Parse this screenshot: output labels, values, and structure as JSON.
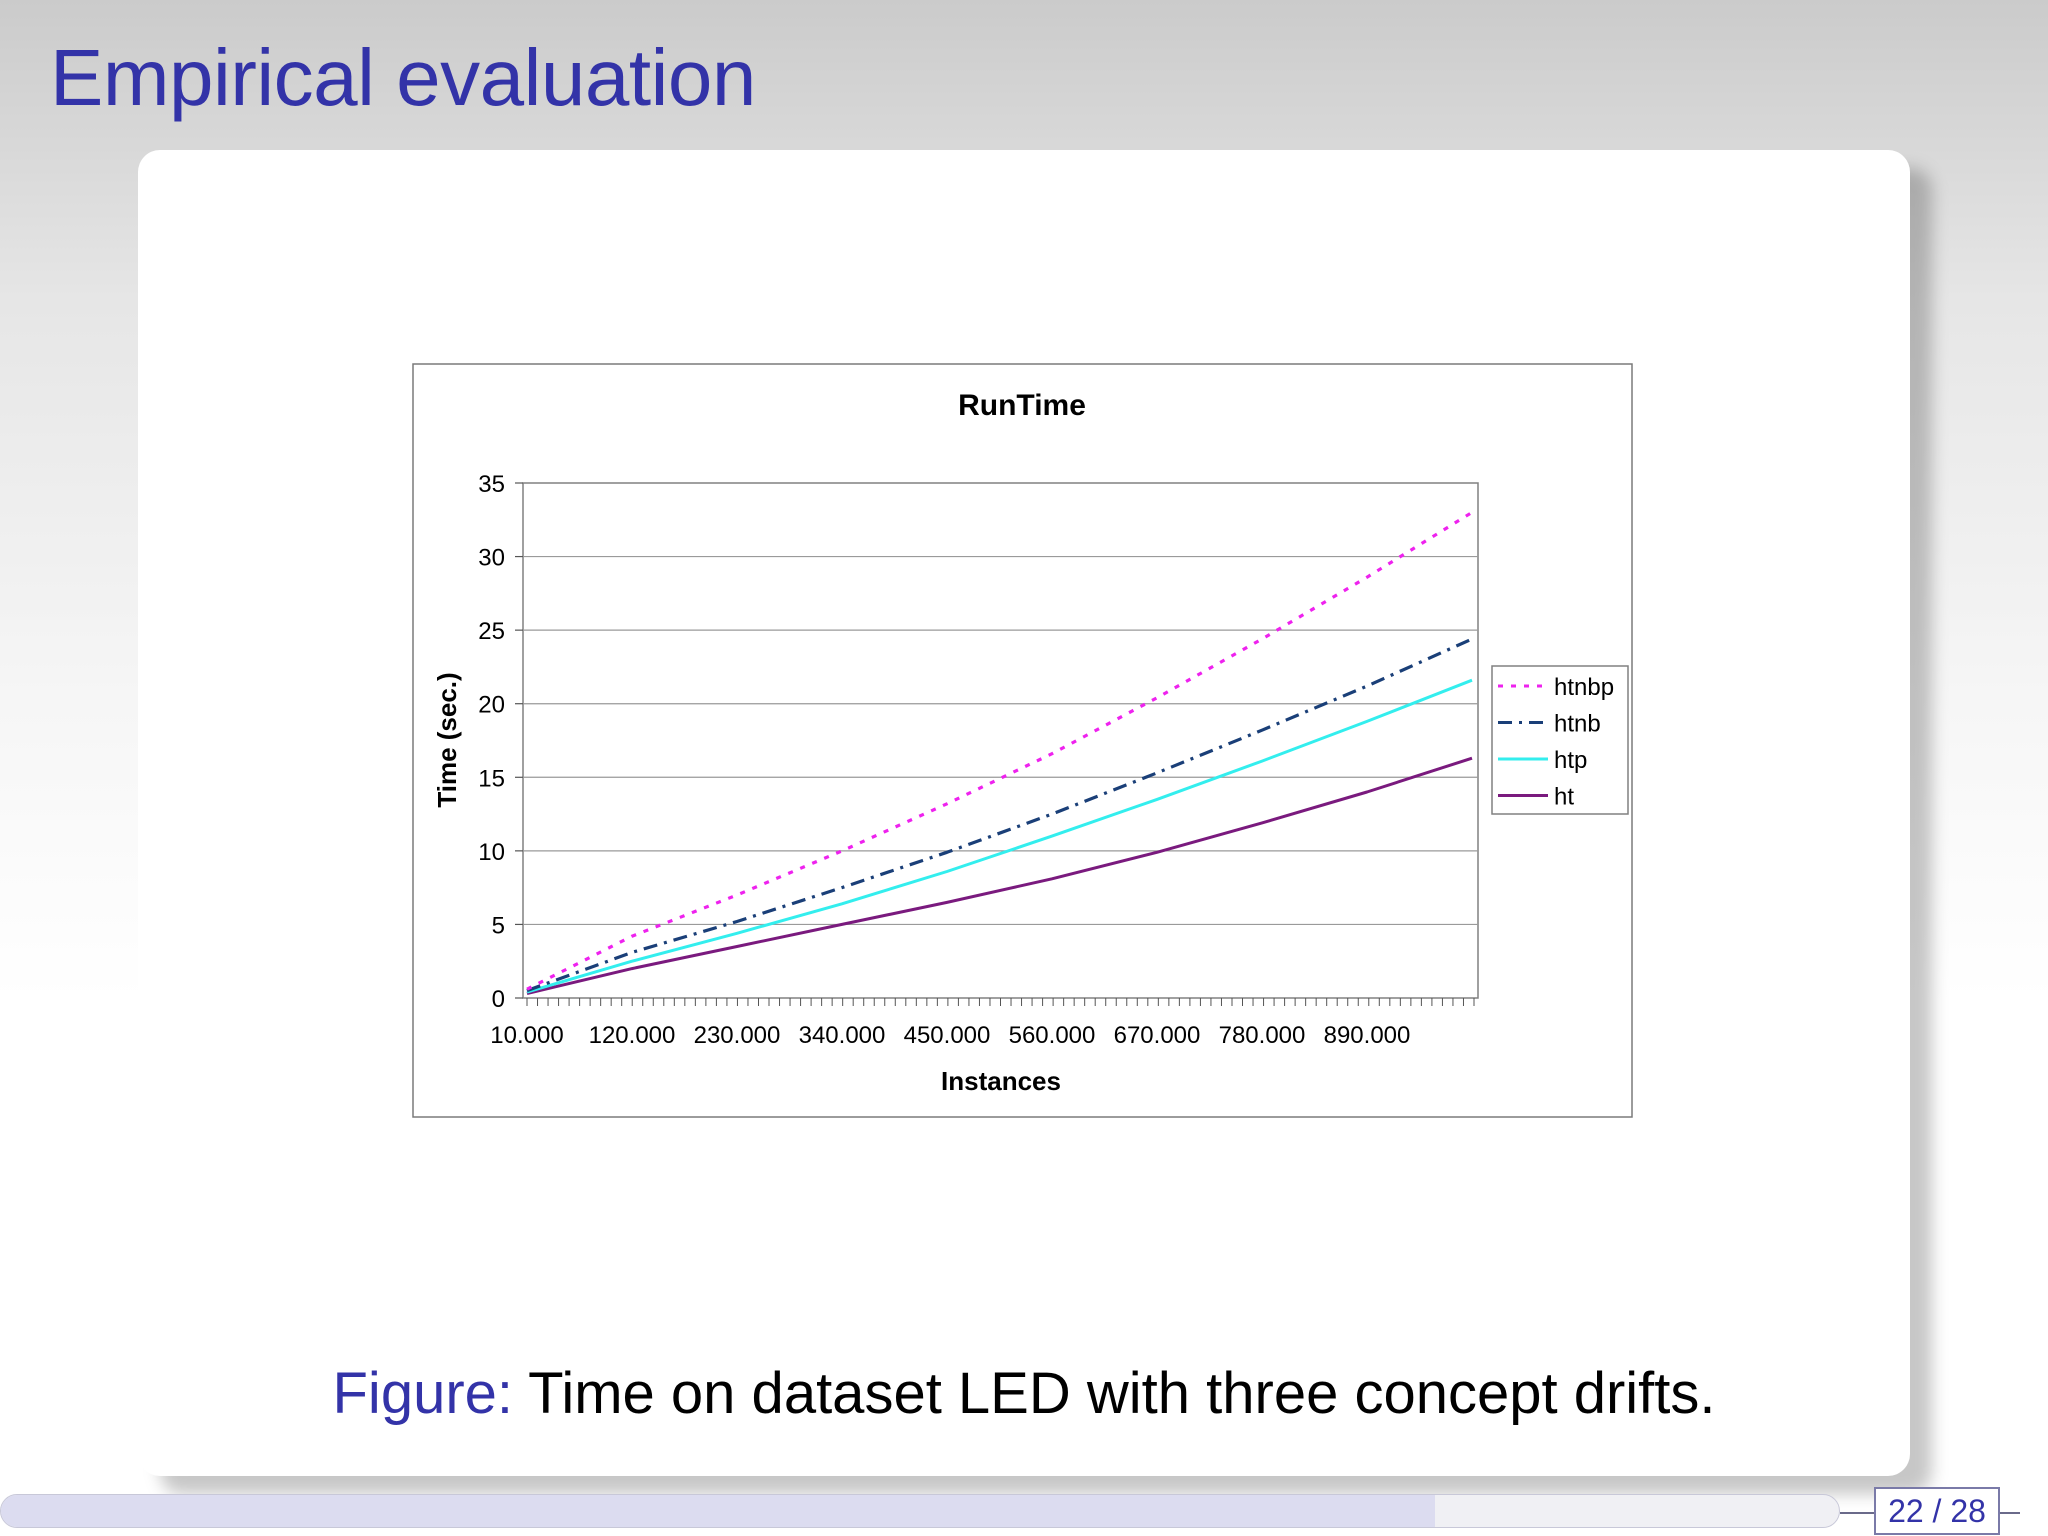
{
  "slide": {
    "title": "Empirical evaluation",
    "caption_label": "Figure:",
    "caption_text": " Time on dataset LED with three concept drifts.",
    "page_number": "22 / 28",
    "nav_progress": 0.78
  },
  "colors": {
    "title": "#3333a8",
    "htnbp": "#ee22ee",
    "htnb": "#1a3f78",
    "htp": "#33eeee",
    "ht": "#7a1a7e"
  },
  "chart_data": {
    "type": "line",
    "title": "RunTime",
    "xlabel": "Instances",
    "ylabel": "Time (sec.)",
    "ylim": [
      0,
      35
    ],
    "yticks": [
      0,
      5,
      10,
      15,
      20,
      25,
      30,
      35
    ],
    "xticklabels": [
      "10.000",
      "120.000",
      "230.000",
      "340.000",
      "450.000",
      "560.000",
      "670.000",
      "780.000",
      "890.000"
    ],
    "x": [
      10000,
      120000,
      230000,
      340000,
      450000,
      560000,
      670000,
      780000,
      890000,
      1000000
    ],
    "xlim": [
      10000,
      1000000
    ],
    "grid": true,
    "legend_position": "right",
    "series": [
      {
        "name": "htnbp",
        "style": "dotted",
        "values": [
          0.6,
          4.2,
          7.0,
          10.0,
          13.2,
          16.6,
          20.4,
          24.4,
          28.6,
          33.0
        ]
      },
      {
        "name": "htnb",
        "style": "dashdot",
        "values": [
          0.5,
          3.1,
          5.2,
          7.5,
          9.9,
          12.5,
          15.3,
          18.2,
          21.2,
          24.4
        ]
      },
      {
        "name": "htp",
        "style": "solid",
        "values": [
          0.4,
          2.5,
          4.4,
          6.4,
          8.6,
          11.0,
          13.5,
          16.1,
          18.8,
          21.6
        ]
      },
      {
        "name": "ht",
        "style": "solid",
        "values": [
          0.3,
          2.0,
          3.5,
          5.0,
          6.5,
          8.1,
          9.9,
          11.9,
          14.0,
          16.3
        ]
      }
    ]
  }
}
